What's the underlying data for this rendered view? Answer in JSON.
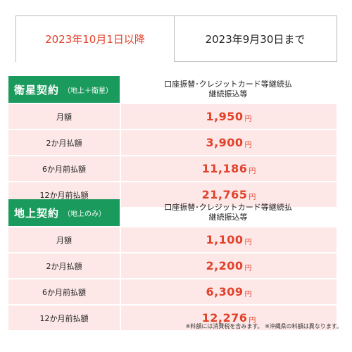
{
  "tabs": {
    "active": "2023年10月1日以降",
    "inactive": "2023年9月30日まで"
  },
  "colors": {
    "accent": "#e2412a",
    "header_green": "#1a9a5c",
    "row_pink": "#fde8e7"
  },
  "sections": [
    {
      "title": "衛星契約",
      "subtitle": "（地上＋衛星）",
      "column_header_line1": "口座振替･クレジットカード等継続払",
      "column_header_line2": "継続振込等",
      "rows": [
        {
          "label": "月額",
          "price": "1,950",
          "unit": "円"
        },
        {
          "label": "2か月払額",
          "price": "3,900",
          "unit": "円"
        },
        {
          "label": "6か月前払額",
          "price": "11,186",
          "unit": "円"
        },
        {
          "label": "12か月前払額",
          "price": "21,765",
          "unit": "円"
        }
      ]
    },
    {
      "title": "地上契約",
      "subtitle": "（地上のみ）",
      "column_header_line1": "口座振替･クレジットカード等継続払",
      "column_header_line2": "継続振込等",
      "rows": [
        {
          "label": "月額",
          "price": "1,100",
          "unit": "円"
        },
        {
          "label": "2か月払額",
          "price": "2,200",
          "unit": "円"
        },
        {
          "label": "6か月前払額",
          "price": "6,309",
          "unit": "円"
        },
        {
          "label": "12か月前払額",
          "price": "12,276",
          "unit": "円"
        }
      ]
    }
  ],
  "footnote": "※料額には消費税を含みます。 ※沖縄県の料額は異なります。"
}
